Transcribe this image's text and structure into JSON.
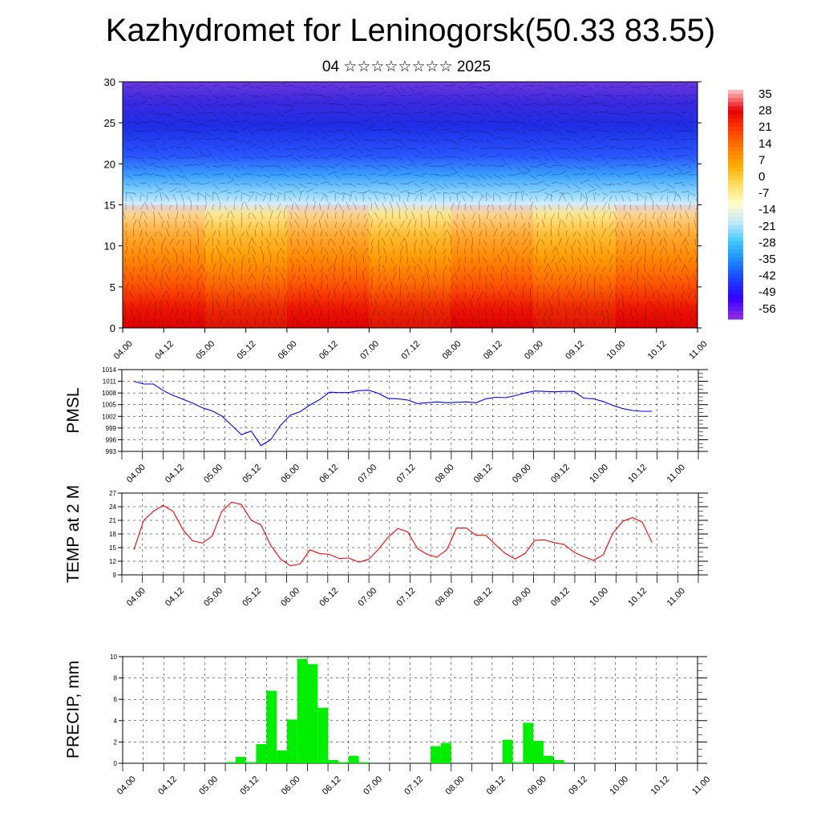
{
  "title": "Kazhydromet for Leninogorsk(50.33 83.55)",
  "subtitle": "04 ☆☆☆☆☆☆☆☆ 2025",
  "time_ticks": [
    "04.00",
    "04.12",
    "05.00",
    "05.12",
    "06.00",
    "06.12",
    "07.00",
    "07.12",
    "08.00",
    "08.12",
    "09.00",
    "09.12",
    "10.00",
    "10.12",
    "11.00"
  ],
  "colors": {
    "pmsl_line": "#0000ff",
    "temp_line": "#ff0000",
    "precip_bar": "#00ee00",
    "colormap": [
      "#8a2be2",
      "#3300ff",
      "#1a40ff",
      "#1e88ff",
      "#3ec8ff",
      "#bfe8ff",
      "#ffffcc",
      "#ffe066",
      "#ffb000",
      "#ff7a00",
      "#ff3c00",
      "#e60000",
      "#ffb3b3"
    ]
  },
  "chart_data": [
    {
      "type": "heatmap",
      "title": "",
      "ylabel": "",
      "xlabel": "",
      "ylim": [
        0,
        30
      ],
      "y_ticks": [
        0,
        5,
        10,
        15,
        20,
        25,
        30
      ],
      "x_ticks": [
        "04.00",
        "04.12",
        "05.00",
        "05.12",
        "06.00",
        "06.12",
        "07.00",
        "07.12",
        "08.00",
        "08.12",
        "09.00",
        "09.12",
        "10.00",
        "10.12",
        "11.00"
      ],
      "colorbar_labels": [
        "35",
        "28",
        "21",
        "14",
        "7",
        "0",
        "-7",
        "-14",
        "-21",
        "-28",
        "-35",
        "-42",
        "-49",
        "-56"
      ],
      "overlay": "wind vectors"
    },
    {
      "type": "line",
      "ylabel": "PMSL",
      "ylim": [
        993,
        1014
      ],
      "y_ticks": [
        993,
        996,
        999,
        1002,
        1005,
        1008,
        1011,
        1014
      ],
      "x_hours": [
        0,
        3,
        6,
        9,
        12,
        15,
        18,
        21,
        24,
        27,
        30,
        33,
        36,
        39,
        42,
        45,
        48,
        51,
        54,
        57,
        60,
        63,
        66,
        69,
        72,
        75,
        78,
        81,
        84,
        87,
        90,
        93,
        96,
        99,
        102,
        105,
        108,
        111,
        114,
        117,
        120,
        123,
        126,
        129,
        132,
        135,
        138,
        141,
        144,
        147,
        150,
        153,
        156,
        159
      ],
      "values": [
        1011,
        1010.3,
        1010.3,
        1008.6,
        1007.4,
        1006.4,
        1005.4,
        1004.2,
        1003.4,
        1002.1,
        999.7,
        997.3,
        998.2,
        994.5,
        996,
        999.7,
        1002.3,
        1003.2,
        1004.9,
        1006.3,
        1008.2,
        1008.1,
        1008.1,
        1008.6,
        1008.7,
        1007.9,
        1006.6,
        1006.5,
        1006.2,
        1005.3,
        1005.5,
        1005.7,
        1005.5,
        1005.6,
        1005.7,
        1005.5,
        1006.5,
        1006.9,
        1006.8,
        1007.3,
        1008,
        1008.5,
        1008.4,
        1008.3,
        1008.4,
        1008.4,
        1006.7,
        1006.5,
        1005.8,
        1004.8,
        1004,
        1003.5,
        1003.3,
        1003.3
      ]
    },
    {
      "type": "line",
      "ylabel": "TEMP at 2 M",
      "ylim": [
        9,
        27
      ],
      "y_ticks": [
        9,
        12,
        15,
        18,
        21,
        24,
        27
      ],
      "x_hours": [
        0,
        3,
        6,
        9,
        12,
        15,
        18,
        21,
        24,
        27,
        30,
        33,
        36,
        39,
        42,
        45,
        48,
        51,
        54,
        57,
        60,
        63,
        66,
        69,
        72,
        75,
        78,
        81,
        84,
        87,
        90,
        93,
        96,
        99,
        102,
        105,
        108,
        111,
        114,
        117,
        120,
        123,
        126,
        129,
        132,
        135,
        138,
        141,
        144,
        147,
        150,
        153,
        156,
        159
      ],
      "values": [
        14.5,
        21,
        23,
        24.3,
        23,
        19,
        16.5,
        16,
        17.5,
        23,
        25,
        24.5,
        21,
        20,
        15.5,
        12.5,
        11,
        11.4,
        14.5,
        13.7,
        13.5,
        12.6,
        12.7,
        11.8,
        12.4,
        14.6,
        17.3,
        19.2,
        18.5,
        14.8,
        13.5,
        12.9,
        14.5,
        19.3,
        19.3,
        17.7,
        17.7,
        15.6,
        13.7,
        12.5,
        13.7,
        16.6,
        16.7,
        16.1,
        15.7,
        14,
        13,
        12.2,
        13.4,
        18.2,
        20.8,
        21.6,
        20.6,
        16.1
      ]
    },
    {
      "type": "bar",
      "ylabel": "PRECIP, mm",
      "ylim": [
        0,
        10
      ],
      "y_ticks": [
        0,
        2,
        4,
        6,
        8,
        10
      ],
      "bar_start_hours": [
        30,
        33,
        36,
        39,
        42,
        45,
        48,
        51,
        54,
        57,
        60,
        63,
        66,
        69,
        72,
        75,
        78,
        81,
        84,
        87,
        90,
        93,
        96,
        99,
        102,
        105,
        108,
        111,
        114,
        117,
        120,
        123,
        126,
        129,
        132,
        135
      ],
      "values": [
        0.1,
        0.6,
        0.1,
        1.8,
        6.8,
        1.2,
        4.1,
        9.8,
        9.3,
        5.2,
        0.3,
        0.1,
        0.7,
        0.1,
        0,
        0,
        0,
        0,
        0,
        0,
        1.6,
        1.9,
        0,
        0,
        0,
        0,
        0,
        2.2,
        0.1,
        3.8,
        2.1,
        0.7,
        0.3,
        0,
        0,
        0
      ]
    }
  ]
}
